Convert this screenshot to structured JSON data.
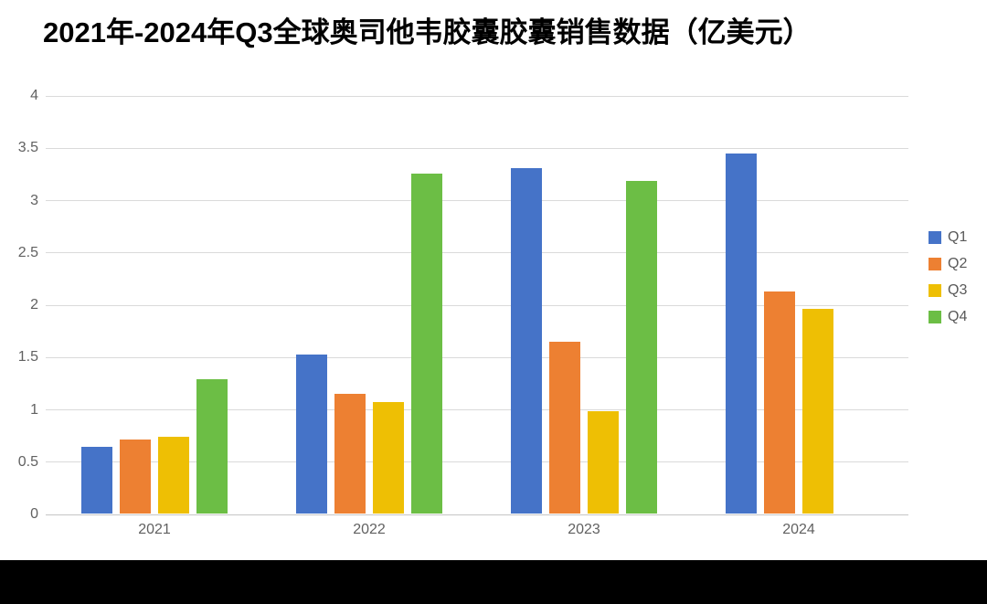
{
  "title": "2021年-2024年Q3全球奥司他韦胶囊胶囊销售数据（亿美元）",
  "chart_data": {
    "type": "bar",
    "title": "2021年-2024年Q3全球奥司他韦胶囊胶囊销售数据（亿美元）",
    "categories": [
      "2021",
      "2022",
      "2023",
      "2024"
    ],
    "series": [
      {
        "name": "Q1",
        "color": "#4573C8",
        "values": [
          0.64,
          1.52,
          3.3,
          3.44
        ]
      },
      {
        "name": "Q2",
        "color": "#ED8032",
        "values": [
          0.71,
          1.14,
          1.64,
          2.12
        ]
      },
      {
        "name": "Q3",
        "color": "#EEBF04",
        "values": [
          0.73,
          1.07,
          0.98,
          1.96
        ]
      },
      {
        "name": "Q4",
        "color": "#6CBE45",
        "values": [
          1.28,
          3.25,
          3.18,
          null
        ]
      }
    ],
    "xlabel": "",
    "ylabel": "",
    "ylim": [
      0,
      4
    ],
    "yticks": [
      0,
      0.5,
      1,
      1.5,
      2,
      2.5,
      3,
      3.5,
      4
    ],
    "grid": true,
    "legend_position": "right",
    "colors": {
      "gridline": "#dadada",
      "baseline": "#c6c6c6",
      "tick_text": "#616161",
      "legend_text": "#595959",
      "title_text": "#000000",
      "footer_band": "#000000"
    }
  }
}
